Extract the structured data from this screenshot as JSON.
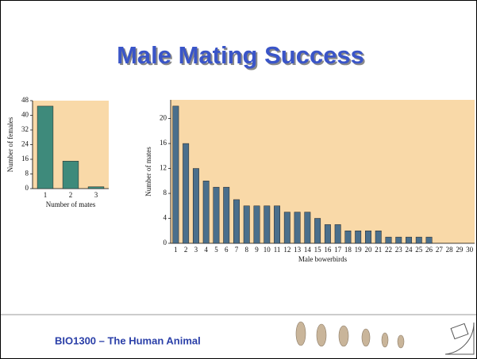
{
  "slide": {
    "title": "Male Mating Success",
    "footer": "BIO1300 – The Human Animal"
  },
  "chart_data": [
    {
      "type": "bar",
      "categories": [
        "1",
        "2",
        "3"
      ],
      "values": [
        45,
        15,
        1
      ],
      "color": "#3e8a7b",
      "x_label": "Number of mates",
      "y_label": "Number of females",
      "ylim": [
        0,
        48
      ],
      "yticks": [
        0,
        8,
        16,
        24,
        32,
        40,
        48
      ],
      "background": "#f9d9a8"
    },
    {
      "type": "bar",
      "categories": [
        "1",
        "2",
        "3",
        "4",
        "5",
        "6",
        "7",
        "8",
        "9",
        "10",
        "11",
        "12",
        "13",
        "14",
        "15",
        "16",
        "17",
        "18",
        "19",
        "20",
        "21",
        "22",
        "23",
        "24",
        "25",
        "26",
        "27",
        "28",
        "29",
        "30"
      ],
      "values": [
        22,
        16,
        12,
        10,
        9,
        9,
        7,
        6,
        6,
        6,
        6,
        5,
        5,
        5,
        4,
        3,
        3,
        2,
        2,
        2,
        2,
        1,
        1,
        1,
        1,
        1,
        0,
        0,
        0,
        0
      ],
      "color": "#4a6f8c",
      "x_label": "Male bowerbirds",
      "y_label": "Number of mates",
      "ylim": [
        0,
        23
      ],
      "yticks": [
        0,
        4,
        8,
        12,
        16,
        20
      ],
      "background": "#f9d9a8"
    }
  ]
}
